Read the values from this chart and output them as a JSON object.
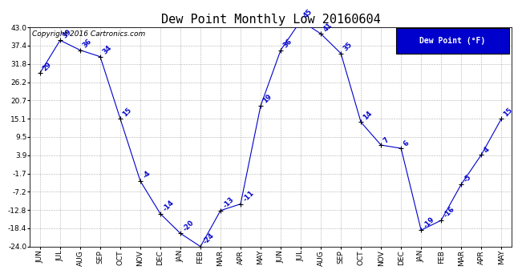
{
  "title": "Dew Point Monthly Low 20160604",
  "copyright": "Copyright 2016 Cartronics.com",
  "legend_label": "Dew Point (°F)",
  "x_labels": [
    "JUN",
    "JUL",
    "AUG",
    "SEP",
    "OCT",
    "NOV",
    "DEC",
    "JAN",
    "FEB",
    "MAR",
    "APR",
    "MAY",
    "JUN",
    "JUL",
    "AUG",
    "SEP",
    "OCT",
    "NOV",
    "DEC",
    "JAN",
    "FEB",
    "MAR",
    "APR",
    "MAY"
  ],
  "y_values": [
    29,
    39,
    36,
    34,
    15,
    -4,
    -14,
    -20,
    -24,
    -13,
    -11,
    19,
    36,
    45,
    41,
    35,
    14,
    7,
    6,
    -19,
    -16,
    -5,
    4,
    15
  ],
  "ylim": [
    -24.0,
    43.0
  ],
  "y_ticks": [
    -24.0,
    -18.4,
    -12.8,
    -7.2,
    -1.7,
    3.9,
    9.5,
    15.1,
    20.7,
    26.2,
    31.8,
    37.4,
    43.0
  ],
  "line_color": "#0000cc",
  "marker": "+",
  "marker_color": "black",
  "bg_color": "#ffffff",
  "grid_color": "#b0b0b0",
  "title_fontsize": 11,
  "tick_fontsize": 6.5,
  "data_label_fontsize": 6.0,
  "legend_bg": "#0000cc",
  "legend_fg": "#ffffff",
  "legend_fontsize": 7,
  "copyright_fontsize": 6.5
}
